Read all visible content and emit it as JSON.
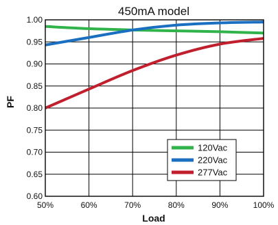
{
  "chart_data": {
    "type": "line",
    "title": "450mA model",
    "xlabel": "Load",
    "ylabel": "PF",
    "x": [
      50,
      60,
      70,
      80,
      90,
      100
    ],
    "xtick_labels": [
      "50%",
      "60%",
      "70%",
      "80%",
      "90%",
      "100%"
    ],
    "xlim": [
      50,
      100
    ],
    "ylim": [
      0.6,
      1.0
    ],
    "yticks": [
      0.6,
      0.65,
      0.7,
      0.75,
      0.8,
      0.85,
      0.9,
      0.95,
      1.0
    ],
    "ytick_labels": [
      "0.60",
      "0.65",
      "0.70",
      "0.75",
      "0.80",
      "0.85",
      "0.90",
      "0.95",
      "1.00"
    ],
    "grid": true,
    "legend_position": "bottom-right",
    "series": [
      {
        "name": "120Vac",
        "color": "#2fb34a",
        "values": [
          0.985,
          0.98,
          0.977,
          0.975,
          0.973,
          0.97
        ]
      },
      {
        "name": "220Vac",
        "color": "#1a6fc0",
        "values": [
          0.943,
          0.96,
          0.977,
          0.988,
          0.993,
          0.995
        ]
      },
      {
        "name": "277Vac",
        "color": "#c0202e",
        "values": [
          0.8,
          0.843,
          0.885,
          0.92,
          0.945,
          0.958
        ]
      }
    ]
  }
}
